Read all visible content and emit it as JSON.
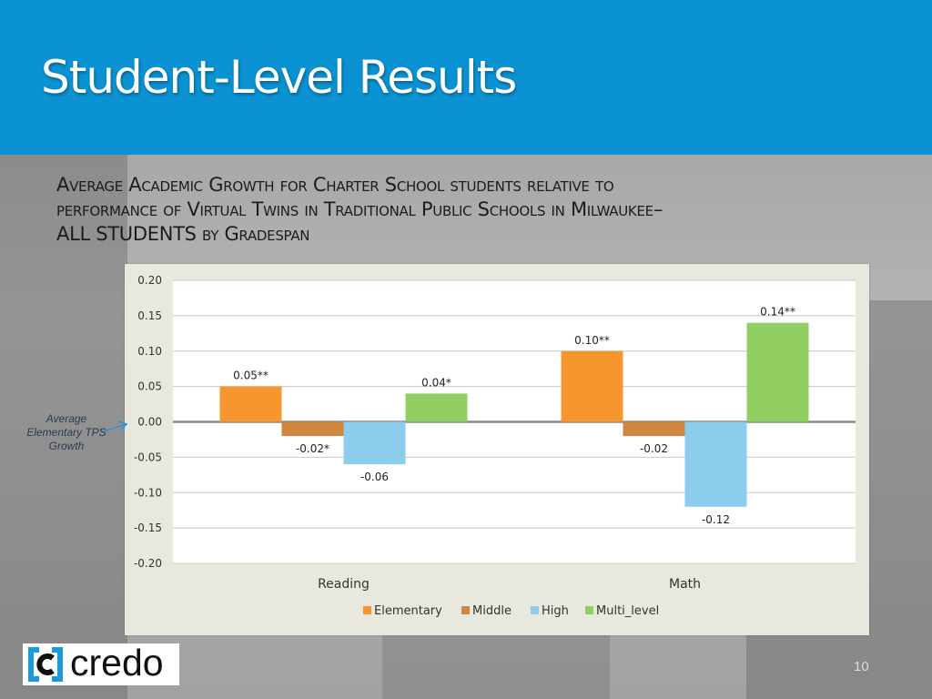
{
  "slide": {
    "title": "Student-Level Results",
    "subtitle_line1": "Average Academic Growth for Charter School students relative to",
    "subtitle_line2": "performance of Virtual Twins in Traditional Public Schools in Milwaukee–",
    "subtitle_line3": "ALL STUDENTS by Gradespan",
    "side_note": "Average Elementary TPS Growth",
    "logo_text": "credo",
    "logo_icon": "credo-bracket-c-icon",
    "page_number": "10"
  },
  "colors": {
    "header": "#0a92d2",
    "elementary": "#f7962f",
    "middle": "#d2853d",
    "high": "#8ccdee",
    "multi_level": "#92cf62"
  },
  "chart_data": {
    "type": "bar",
    "categories": [
      "Reading",
      "Math"
    ],
    "series": [
      {
        "name": "Elementary",
        "values": [
          0.05,
          0.1
        ],
        "labels": [
          "0.05**",
          "0.10**"
        ],
        "color": "#f7962f"
      },
      {
        "name": "Middle",
        "values": [
          -0.02,
          -0.02
        ],
        "labels": [
          "-0.02*",
          "-0.02"
        ],
        "color": "#d2853d"
      },
      {
        "name": "High",
        "values": [
          -0.06,
          -0.12
        ],
        "labels": [
          "-0.06",
          "-0.12"
        ],
        "color": "#8ccdee"
      },
      {
        "name": "Multi_level",
        "values": [
          0.04,
          0.14
        ],
        "labels": [
          "0.04*",
          "0.14**"
        ],
        "color": "#92cf62"
      }
    ],
    "ylim": [
      -0.2,
      0.2
    ],
    "yticks": [
      0.2,
      0.15,
      0.1,
      0.05,
      0.0,
      -0.05,
      -0.1,
      -0.15,
      -0.2
    ],
    "ytick_labels": [
      "0.20",
      "0.15",
      "0.10",
      "0.05",
      "0.00",
      "-0.05",
      "-0.10",
      "-0.15",
      "-0.20"
    ],
    "grid": true,
    "legend_position": "bottom"
  }
}
